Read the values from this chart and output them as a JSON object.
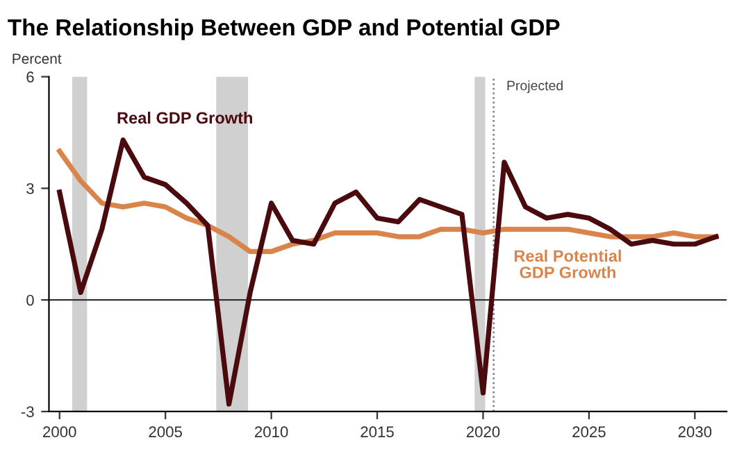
{
  "chart_data": {
    "type": "line",
    "title": "The Relationship Between GDP and Potential GDP",
    "ylabel": "Percent",
    "x": [
      2000,
      2001,
      2002,
      2003,
      2004,
      2005,
      2006,
      2007,
      2008,
      2009,
      2010,
      2011,
      2012,
      2013,
      2014,
      2015,
      2016,
      2017,
      2018,
      2019,
      2020,
      2021,
      2022,
      2023,
      2024,
      2025,
      2026,
      2027,
      2028,
      2029,
      2030,
      2031
    ],
    "series": [
      {
        "name": "Real GDP Growth",
        "color": "#4a0a0e",
        "values": [
          2.9,
          0.2,
          1.9,
          4.3,
          3.3,
          3.1,
          2.6,
          2.0,
          -2.8,
          0.2,
          2.6,
          1.6,
          1.5,
          2.6,
          2.9,
          2.2,
          2.1,
          2.7,
          2.5,
          2.3,
          -2.5,
          3.7,
          2.5,
          2.2,
          2.3,
          2.2,
          1.9,
          1.5,
          1.6,
          1.5,
          1.5,
          1.7
        ]
      },
      {
        "name": "Real Potential GDP Growth",
        "color": "#d9844a",
        "values": [
          4.0,
          3.2,
          2.6,
          2.5,
          2.6,
          2.5,
          2.2,
          2.0,
          1.7,
          1.3,
          1.3,
          1.5,
          1.6,
          1.8,
          1.8,
          1.8,
          1.7,
          1.7,
          1.9,
          1.9,
          1.8,
          1.9,
          1.9,
          1.9,
          1.9,
          1.8,
          1.7,
          1.7,
          1.7,
          1.8,
          1.7,
          1.7
        ]
      }
    ],
    "xlim": [
      1999.5,
      2031.5
    ],
    "ylim": [
      -3,
      6
    ],
    "xticks": [
      2000,
      2005,
      2010,
      2015,
      2020,
      2025,
      2030
    ],
    "yticks": [
      -3,
      0,
      3,
      6
    ],
    "bands": [
      {
        "axis": "x",
        "from": 2000.6,
        "to": 2001.3,
        "color": "#d0d0d0"
      },
      {
        "axis": "x",
        "from": 2007.4,
        "to": 2008.9,
        "color": "#d0d0d0"
      },
      {
        "axis": "x",
        "from": 2019.6,
        "to": 2020.1,
        "color": "#d0d0d0"
      }
    ],
    "ref_lines": [
      {
        "axis": "y",
        "value": 0,
        "color": "#333333",
        "line_style": "solid"
      },
      {
        "axis": "x",
        "value": 2020.5,
        "label": "Projected",
        "color": "#777777",
        "line_style": "dotted"
      }
    ],
    "grid": false,
    "legend": false,
    "marker": "none",
    "line_style": "solid"
  }
}
